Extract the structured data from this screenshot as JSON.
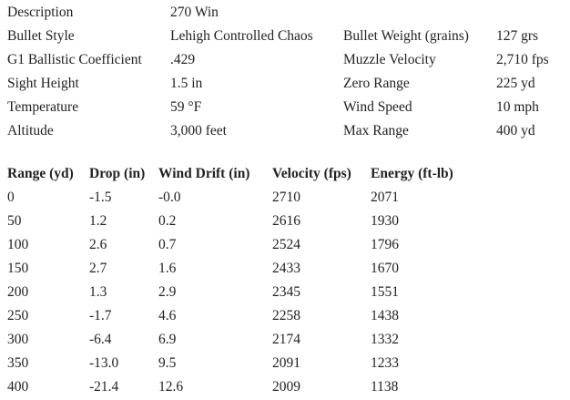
{
  "specs": [
    {
      "label": "Description",
      "value": "270 Win"
    },
    {
      "label": "Bullet Style",
      "value": "Lehigh Controlled Chaos",
      "label2": "Bullet Weight (grains)",
      "value2": "127 grs"
    },
    {
      "label": "G1 Ballistic Coefficient",
      "value": ".429",
      "label2": "Muzzle Velocity",
      "value2": "2,710 fps"
    },
    {
      "label": "Sight Height",
      "value": "1.5 in",
      "label2": "Zero Range",
      "value2": "225 yd"
    },
    {
      "label": "Temperature",
      "value": "59 °F",
      "label2": "Wind Speed",
      "value2": "10 mph"
    },
    {
      "label": "Altitude",
      "value": "3,000 feet",
      "label2": "Max Range",
      "value2": "400 yd"
    }
  ],
  "table": {
    "headers": [
      "Range (yd)",
      "Drop (in)",
      "Wind Drift (in)",
      "Velocity (fps)",
      "Energy (ft-lb)"
    ],
    "rows": [
      [
        "0",
        "-1.5",
        "-0.0",
        "2710",
        "2071"
      ],
      [
        "50",
        "1.2",
        "0.2",
        "2616",
        "1930"
      ],
      [
        "100",
        "2.6",
        "0.7",
        "2524",
        "1796"
      ],
      [
        "150",
        "2.7",
        "1.6",
        "2433",
        "1670"
      ],
      [
        "200",
        "1.3",
        "2.9",
        "2345",
        "1551"
      ],
      [
        "250",
        "-1.7",
        "4.6",
        "2258",
        "1438"
      ],
      [
        "300",
        "-6.4",
        "6.9",
        "2174",
        "1332"
      ],
      [
        "350",
        "-13.0",
        "9.5",
        "2091",
        "1233"
      ],
      [
        "400",
        "-21.4",
        "12.6",
        "2009",
        "1138"
      ]
    ]
  }
}
